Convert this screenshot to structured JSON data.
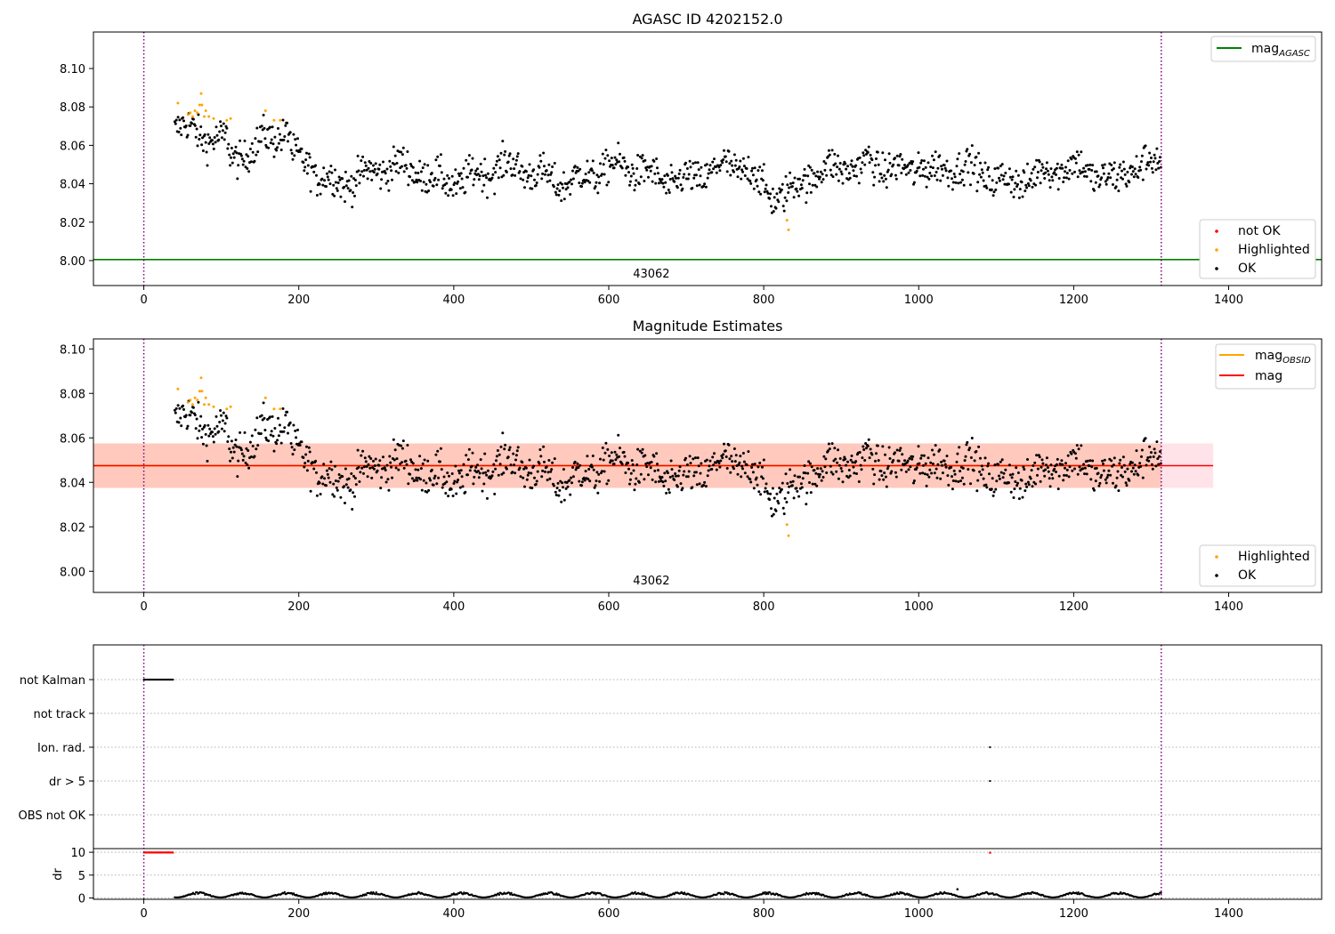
{
  "chart_data": [
    {
      "type": "scatter",
      "title": "AGASC ID 4202152.0",
      "x_range": [
        -65,
        1520
      ],
      "y_range": [
        7.987,
        8.119
      ],
      "x_ticks": [
        0,
        200,
        400,
        600,
        800,
        1000,
        1200,
        1400
      ],
      "x_tick_labels": [
        "0",
        "200",
        "400",
        "600",
        "800",
        "1000",
        "1200",
        "1400"
      ],
      "y_ticks": [
        8.0,
        8.02,
        8.04,
        8.06,
        8.08,
        8.1
      ],
      "y_tick_labels": [
        "8.00",
        "8.02",
        "8.04",
        "8.06",
        "8.08",
        "8.10"
      ],
      "obsid_label": "43062",
      "obsid_label_x": 655,
      "vlines": [
        0,
        1313
      ],
      "hline": {
        "name": "mag_AGASC",
        "value": 8.0005,
        "color": "#008000"
      },
      "legend_line": {
        "name": "mag",
        "sub": "AGASC",
        "color": "#008000"
      },
      "legend_points": [
        {
          "name": "not OK",
          "color": "#ff0000"
        },
        {
          "name": "Highlighted",
          "color": "#ffa500"
        },
        {
          "name": "OK",
          "color": "#000000"
        }
      ]
    },
    {
      "type": "scatter",
      "title": "Magnitude Estimates",
      "x_range": [
        -65,
        1520
      ],
      "y_range": [
        7.9905,
        8.1045
      ],
      "x_ticks": [
        0,
        200,
        400,
        600,
        800,
        1000,
        1200,
        1400
      ],
      "x_tick_labels": [
        "0",
        "200",
        "400",
        "600",
        "800",
        "1000",
        "1200",
        "1400"
      ],
      "y_ticks": [
        8.0,
        8.02,
        8.04,
        8.06,
        8.08,
        8.1
      ],
      "y_tick_labels": [
        "8.00",
        "8.02",
        "8.04",
        "8.06",
        "8.08",
        "8.10"
      ],
      "obsid_label": "43062",
      "obsid_label_x": 655,
      "vlines": [
        0,
        1313
      ],
      "mag": 8.0475,
      "mag_obsid": 8.0475,
      "band_obsid": [
        8.0375,
        8.0575
      ],
      "band_obsid_x": [
        -65,
        1313
      ],
      "band_mag": [
        8.0375,
        8.0575
      ],
      "band_mag_x": [
        -65,
        1380
      ],
      "legend_lines": [
        {
          "name": "mag",
          "sub": "OBSID",
          "color": "#ffa500"
        },
        {
          "name": "mag",
          "sub": "",
          "color": "#ff0000"
        }
      ],
      "legend_points": [
        {
          "name": "Highlighted",
          "color": "#ffa500"
        },
        {
          "name": "OK",
          "color": "#000000"
        }
      ]
    },
    {
      "type": "scatter",
      "title": "",
      "x_range": [
        -65,
        1520
      ],
      "x_ticks": [
        0,
        200,
        400,
        600,
        800,
        1000,
        1200,
        1400
      ],
      "x_tick_labels": [
        "0",
        "200",
        "400",
        "600",
        "800",
        "1000",
        "1200",
        "1400"
      ],
      "flag_categories": [
        "not Kalman",
        "not track",
        "Ion. rad.",
        "dr > 5",
        "OBS not OK"
      ],
      "flag_events": [
        {
          "category": "not Kalman",
          "x_start": 0,
          "x_end": 38
        },
        {
          "category": "Ion. rad.",
          "x": 1092
        },
        {
          "category": "dr > 5",
          "x": 1092
        }
      ],
      "dr_ylabel": "dr",
      "dr_y_range": [
        -0.3,
        10.8
      ],
      "dr_ticks": [
        0,
        5,
        10
      ],
      "dr_tick_labels": [
        "0",
        "5",
        "10"
      ],
      "dr_clipped_value": 10,
      "dr_clipped": [
        {
          "x_start": 0,
          "x_end": 38
        },
        {
          "x": 1092
        }
      ],
      "dr_points_range": [
        0.1,
        1.3
      ],
      "dr_outlier": {
        "x": 1050,
        "value": 1.9
      },
      "vlines": [
        0,
        1313
      ]
    }
  ]
}
